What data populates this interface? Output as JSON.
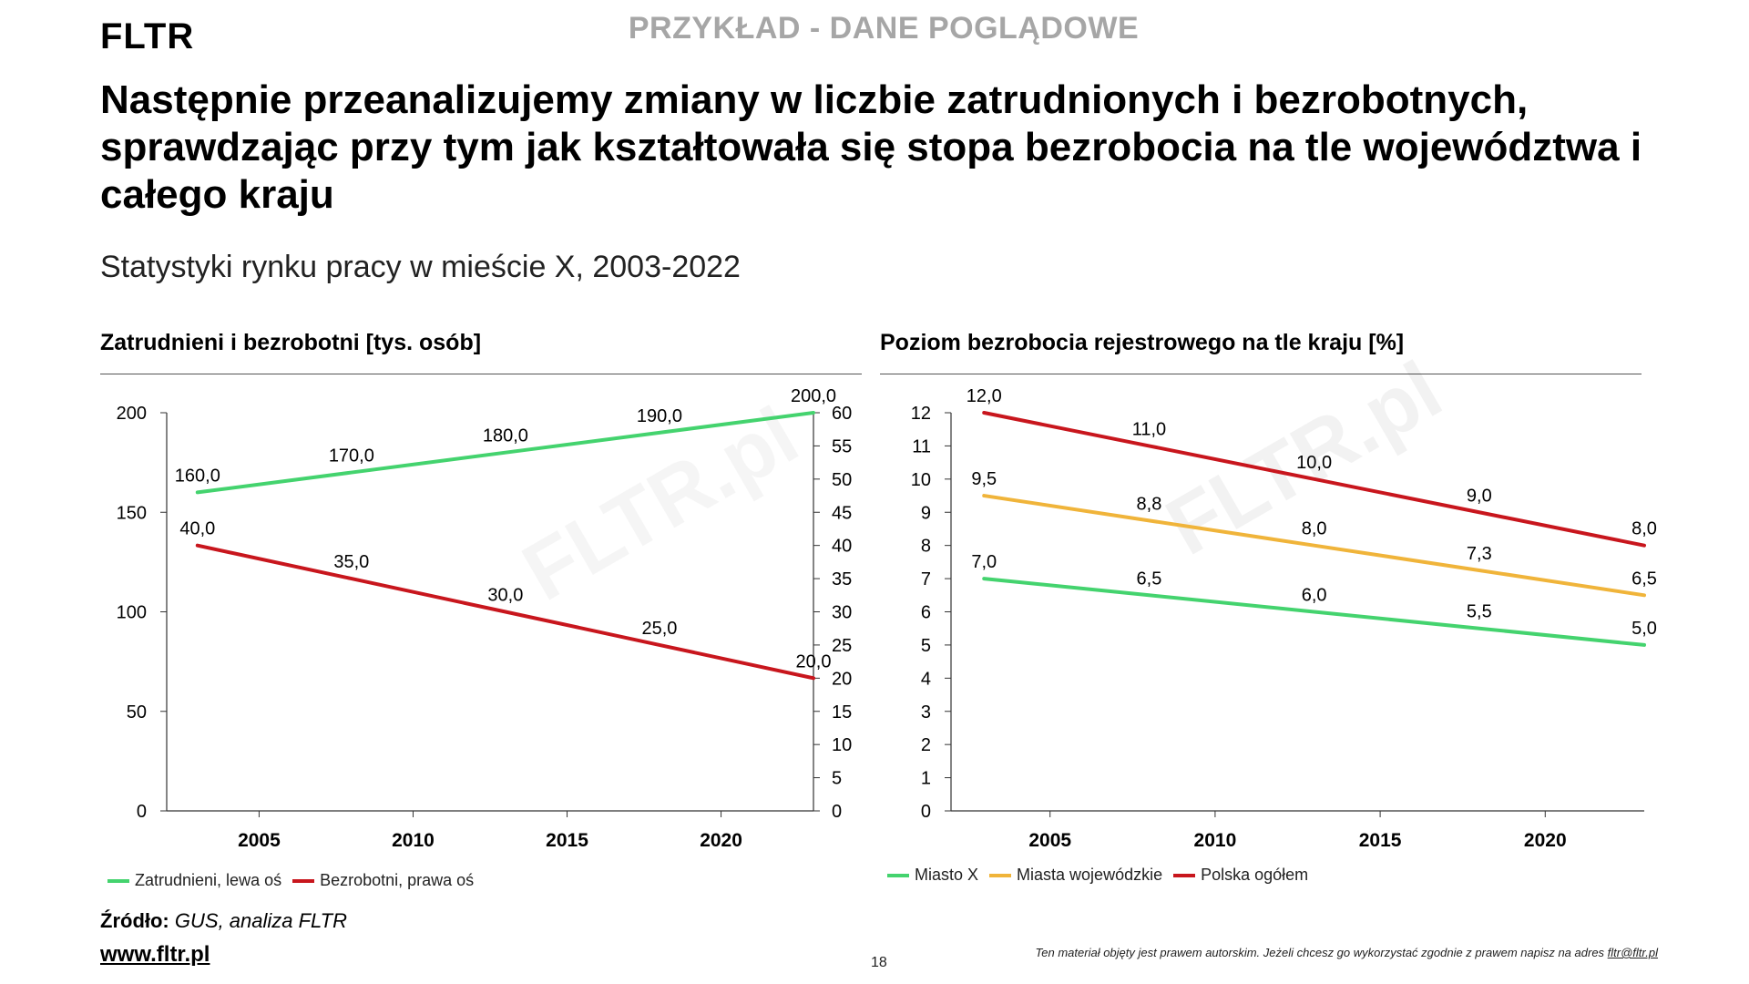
{
  "header": {
    "logo": "FLTR",
    "banner": "PRZYKŁAD - DANE POGLĄDOWE",
    "headline": "Następnie przeanalizujemy zmiany w liczbie zatrudnionych i bezrobotnych, sprawdzając przy tym jak kształtowała się stopa bezrobocia na tle województwa i całego kraju",
    "subtitle": "Statystyki rynku pracy w mieście X, 2003-2022"
  },
  "chart_data": [
    {
      "type": "line",
      "title": "Zatrudnieni i bezrobotni [tys. osób]",
      "x": [
        2003,
        2008,
        2013,
        2018,
        2023
      ],
      "xticks": [
        2005,
        2010,
        2015,
        2020
      ],
      "xticklabels": [
        "2005",
        "2010",
        "2015",
        "2020"
      ],
      "xlim": [
        2002,
        2023
      ],
      "ylim_left": [
        0,
        200
      ],
      "yticks_left": [
        0,
        50,
        100,
        150,
        200
      ],
      "yticklabels_left": [
        "0",
        "50",
        "100",
        "150",
        "200"
      ],
      "ylim_right": [
        0,
        60
      ],
      "yticks_right": [
        0,
        5,
        10,
        15,
        20,
        25,
        30,
        35,
        40,
        45,
        50,
        55,
        60
      ],
      "yticklabels_right": [
        "0",
        "5",
        "10",
        "15",
        "20",
        "25",
        "30",
        "35",
        "40",
        "45",
        "50",
        "55",
        "60"
      ],
      "series": [
        {
          "name": "Zatrudnieni, lewa oś",
          "axis": "left",
          "color": "#44d36e",
          "values": [
            160,
            170,
            180,
            190,
            200
          ],
          "labels": [
            "160,0",
            "170,0",
            "180,0",
            "190,0",
            "200,0"
          ]
        },
        {
          "name": "Bezrobotni, prawa oś",
          "axis": "right",
          "color": "#c8161d",
          "values": [
            40,
            35,
            30,
            25,
            20
          ],
          "labels": [
            "40,0",
            "35,0",
            "30,0",
            "25,0",
            "20,0"
          ]
        }
      ]
    },
    {
      "type": "line",
      "title": "Poziom bezrobocia rejestrowego na tle kraju [%]",
      "x": [
        2003,
        2008,
        2013,
        2018,
        2023
      ],
      "xticks": [
        2005,
        2010,
        2015,
        2020
      ],
      "xticklabels": [
        "2005",
        "2010",
        "2015",
        "2020"
      ],
      "xlim": [
        2002,
        2023
      ],
      "ylim": [
        0,
        12
      ],
      "yticks": [
        0,
        1,
        2,
        3,
        4,
        5,
        6,
        7,
        8,
        9,
        10,
        11,
        12
      ],
      "yticklabels": [
        "0",
        "1",
        "2",
        "3",
        "4",
        "5",
        "6",
        "7",
        "8",
        "9",
        "10",
        "11",
        "12"
      ],
      "watermark": "FLTR.pl",
      "series": [
        {
          "name": "Miasto X",
          "color": "#44d36e",
          "values": [
            7.0,
            6.5,
            6.0,
            5.5,
            5.0
          ],
          "labels": [
            "7,0",
            "6,5",
            "6,0",
            "5,5",
            "5,0"
          ]
        },
        {
          "name": "Miasta wojewódzkie",
          "color": "#f0b43a",
          "values": [
            9.5,
            8.75,
            8.0,
            7.25,
            6.5
          ],
          "labels": [
            "9,5",
            "8,8",
            "8,0",
            "7,3",
            "6,5"
          ]
        },
        {
          "name": "Polska ogółem",
          "color": "#c8161d",
          "values": [
            12.0,
            11.0,
            10.0,
            9.0,
            8.0
          ],
          "labels": [
            "12,0",
            "11,0",
            "10,0",
            "9,0",
            "8,0"
          ]
        }
      ]
    }
  ],
  "footer": {
    "source_label": "Źródło:",
    "source_value": "GUS, analiza FLTR",
    "website": "www.fltr.pl",
    "page_number": "18",
    "copyright_text": "Ten materiał objęty jest prawem  autorskim. Jeżeli chcesz go wykorzystać zgodnie z prawem  napisz na adres ",
    "copyright_email": "fltr@fltr.pl"
  }
}
